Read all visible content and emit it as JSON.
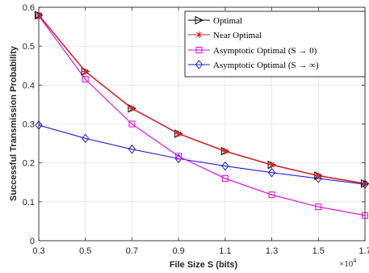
{
  "chart_data": {
    "type": "line",
    "xlabel": "File Size S (bits)",
    "ylabel": "Successful Transmission Probability",
    "x_multiplier": {
      "base": "×10",
      "exponent": "4"
    },
    "x": [
      0.3,
      0.5,
      0.7,
      0.9,
      1.1,
      1.3,
      1.5,
      1.7
    ],
    "xlim": [
      0.3,
      1.7
    ],
    "ylim": [
      0,
      0.6
    ],
    "xticks": [
      "0.3",
      "0.5",
      "0.7",
      "0.9",
      "1.1",
      "1.3",
      "1.5",
      "1.7"
    ],
    "yticks": [
      "0",
      "0.1",
      "0.2",
      "0.3",
      "0.4",
      "0.5",
      "0.6"
    ],
    "grid": true,
    "legend_position": "top-right",
    "series": [
      {
        "name": "Optimal",
        "color": "#000000",
        "marker": "triangle-right",
        "values": [
          0.58,
          0.435,
          0.34,
          0.275,
          0.23,
          0.195,
          0.167,
          0.147
        ]
      },
      {
        "name": "Near Optimal",
        "color": "#d62728",
        "marker": "asterisk",
        "values": [
          0.58,
          0.435,
          0.34,
          0.275,
          0.23,
          0.195,
          0.167,
          0.147
        ]
      },
      {
        "name": "Asymptotic Optimal (S → 0)",
        "color": "#e600e6",
        "marker": "square",
        "values": [
          0.578,
          0.415,
          0.3,
          0.217,
          0.16,
          0.118,
          0.087,
          0.065
        ]
      },
      {
        "name": "Asymptotic Optimal (S → ∞)",
        "color": "#1f1fe0",
        "marker": "diamond",
        "values": [
          0.297,
          0.263,
          0.235,
          0.211,
          0.192,
          0.175,
          0.16,
          0.145
        ]
      }
    ]
  }
}
